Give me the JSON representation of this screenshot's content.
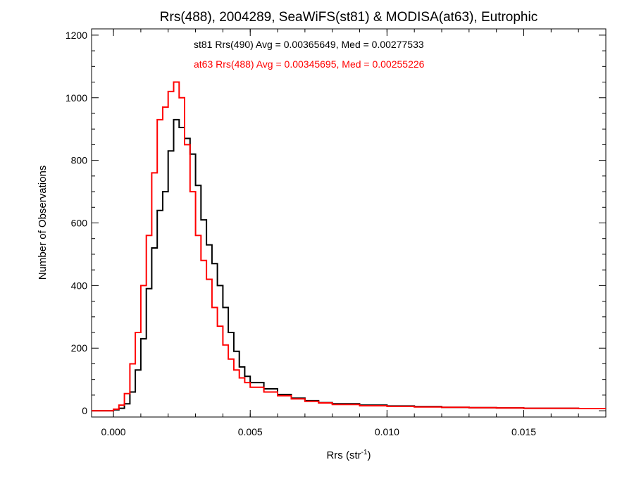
{
  "chart_data": {
    "type": "line",
    "title": "Rrs(488), 2004289, SeaWiFS(st81) & MODISA(at63), Eutrophic",
    "xlabel": "Rrs (str",
    "xlabel_superscript": "-1",
    "xlabel_suffix": ")",
    "ylabel": "Number of Observations",
    "xlim": [
      -0.0008,
      0.018
    ],
    "ylim": [
      -20,
      1220
    ],
    "x_ticks": [
      0.0,
      0.005,
      0.01,
      0.015
    ],
    "x_tick_labels": [
      "0.000",
      "0.005",
      "0.010",
      "0.015"
    ],
    "y_ticks": [
      0,
      200,
      400,
      600,
      800,
      1000,
      1200
    ],
    "y_tick_labels": [
      "0",
      "200",
      "400",
      "600",
      "800",
      "1000",
      "1200"
    ],
    "grid": false,
    "step_style": "histogram",
    "series": [
      {
        "name": "st81",
        "color": "#000000",
        "x": [
          -0.0008,
          0.0,
          0.0002,
          0.0004,
          0.0006,
          0.0008,
          0.001,
          0.0012,
          0.0014,
          0.0016,
          0.0018,
          0.002,
          0.0022,
          0.0024,
          0.0026,
          0.0028,
          0.003,
          0.0032,
          0.0034,
          0.0036,
          0.0038,
          0.004,
          0.0042,
          0.0044,
          0.0046,
          0.0048,
          0.005,
          0.0055,
          0.006,
          0.0065,
          0.007,
          0.0075,
          0.008,
          0.009,
          0.01,
          0.011,
          0.012,
          0.013,
          0.014,
          0.015,
          0.016,
          0.017,
          0.018
        ],
        "y": [
          0,
          3,
          8,
          22,
          60,
          130,
          230,
          390,
          520,
          640,
          700,
          830,
          930,
          905,
          870,
          820,
          720,
          610,
          530,
          470,
          400,
          330,
          250,
          190,
          140,
          110,
          90,
          70,
          52,
          40,
          32,
          26,
          22,
          18,
          15,
          13,
          11,
          10,
          9,
          8,
          8,
          7,
          7
        ]
      },
      {
        "name": "at63",
        "color": "#ff0000",
        "x": [
          -0.0008,
          0.0,
          0.0002,
          0.0004,
          0.0006,
          0.0008,
          0.001,
          0.0012,
          0.0014,
          0.0016,
          0.0018,
          0.002,
          0.0022,
          0.0024,
          0.0026,
          0.0028,
          0.003,
          0.0032,
          0.0034,
          0.0036,
          0.0038,
          0.004,
          0.0042,
          0.0044,
          0.0046,
          0.0048,
          0.005,
          0.0055,
          0.006,
          0.0065,
          0.007,
          0.0075,
          0.008,
          0.009,
          0.01,
          0.011,
          0.012,
          0.013,
          0.014,
          0.015,
          0.016,
          0.017,
          0.018
        ],
        "y": [
          0,
          5,
          18,
          55,
          150,
          250,
          400,
          560,
          760,
          930,
          970,
          1020,
          1050,
          1000,
          850,
          700,
          560,
          480,
          420,
          330,
          270,
          210,
          165,
          130,
          105,
          90,
          75,
          60,
          48,
          38,
          30,
          25,
          20,
          16,
          14,
          12,
          11,
          10,
          9,
          8,
          8,
          7,
          7
        ]
      }
    ],
    "annotations": [
      {
        "text": "st81 Rrs(490) Avg = 0.00365649, Med = 0.00277533",
        "color": "#000000"
      },
      {
        "text": "at63 Rrs(488) Avg = 0.00345695, Med = 0.00255226",
        "color": "#ff0000"
      }
    ]
  }
}
